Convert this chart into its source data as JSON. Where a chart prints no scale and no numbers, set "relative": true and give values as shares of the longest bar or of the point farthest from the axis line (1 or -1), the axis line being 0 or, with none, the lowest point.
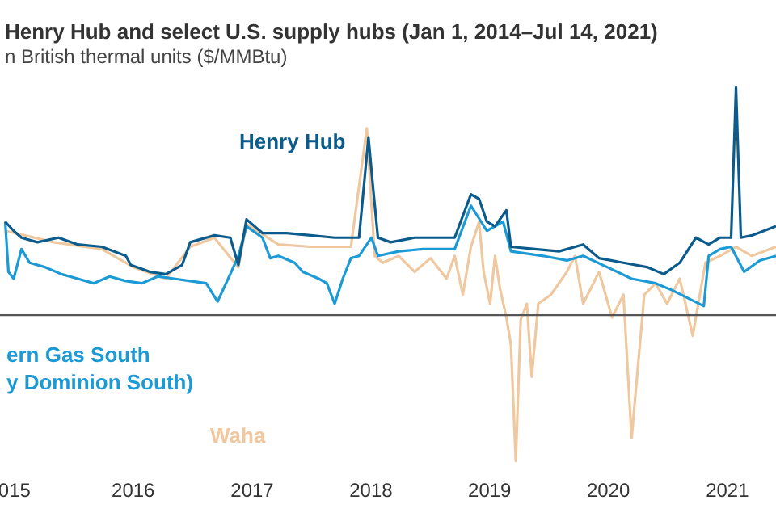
{
  "chart_data": {
    "type": "line",
    "title": "Henry Hub and select U.S. supply hubs (Jan 1, 2014–Jul 14, 2021)",
    "subtitle": "n British thermal units ($/MMBtu)",
    "relative": true,
    "legend": false,
    "line_style": "solid",
    "marker": "none",
    "xlim": [
      "2014-11-20",
      "2021-06-02"
    ],
    "xticks": [
      {
        "value": "2015-01-01",
        "label": "015"
      },
      {
        "value": "2016-01-01",
        "label": "2016"
      },
      {
        "value": "2017-01-01",
        "label": "2017"
      },
      {
        "value": "2018-01-01",
        "label": "2018"
      },
      {
        "value": "2019-01-01",
        "label": "2019"
      },
      {
        "value": "2020-01-01",
        "label": "2020"
      },
      {
        "value": "2021-01-01",
        "label": "2021"
      }
    ],
    "series": [
      {
        "name": "Henry Hub",
        "color": "#0b5c8c",
        "x": [
          "2014-12-06",
          "2015-01-01",
          "2015-01-25",
          "2015-03-15",
          "2015-05-19",
          "2015-07-17",
          "2015-09-29",
          "2015-12-12",
          "2015-12-27",
          "2016-02-24",
          "2016-04-13",
          "2016-06-02",
          "2016-06-27",
          "2016-09-09",
          "2016-10-28",
          "2016-11-22",
          "2016-12-17",
          "2017-02-04",
          "2017-04-19",
          "2017-07-02",
          "2017-09-14",
          "2017-11-28",
          "2017-12-27",
          "2018-01-10",
          "2018-01-25",
          "2018-03-05",
          "2018-05-18",
          "2018-07-31",
          "2018-09-18",
          "2018-11-07",
          "2018-12-02",
          "2018-12-26",
          "2019-01-20",
          "2019-02-24",
          "2019-03-10",
          "2019-05-23",
          "2019-08-05",
          "2019-10-18",
          "2019-12-06",
          "2020-02-19",
          "2020-05-04",
          "2020-06-22",
          "2020-08-10",
          "2020-09-29",
          "2020-11-07",
          "2020-12-12",
          "2021-01-15",
          "2021-01-30",
          "2021-02-14",
          "2021-03-20",
          "2021-06-02"
        ],
        "values": [
          0.41,
          0.37,
          0.34,
          0.32,
          0.34,
          0.31,
          0.3,
          0.26,
          0.22,
          0.19,
          0.18,
          0.22,
          0.32,
          0.35,
          0.34,
          0.22,
          0.42,
          0.36,
          0.36,
          0.35,
          0.34,
          0.34,
          0.78,
          0.56,
          0.34,
          0.32,
          0.34,
          0.34,
          0.34,
          0.53,
          0.51,
          0.41,
          0.39,
          0.46,
          0.3,
          0.29,
          0.28,
          0.31,
          0.25,
          0.23,
          0.21,
          0.18,
          0.23,
          0.34,
          0.31,
          0.34,
          0.34,
          1.0,
          0.34,
          0.35,
          0.39
        ]
      },
      {
        "name": "ern Gas South\ny Dominion South)",
        "color": "#1b9ad6",
        "x": [
          "2014-12-06",
          "2014-12-16",
          "2015-01-01",
          "2015-01-25",
          "2015-02-19",
          "2015-04-09",
          "2015-05-28",
          "2015-07-17",
          "2015-09-04",
          "2015-10-23",
          "2015-12-12",
          "2016-01-30",
          "2016-03-19",
          "2016-05-08",
          "2016-06-27",
          "2016-08-15",
          "2016-09-19",
          "2016-10-28",
          "2016-11-22",
          "2016-12-17",
          "2017-02-04",
          "2017-02-28",
          "2017-03-25",
          "2017-05-14",
          "2017-06-08",
          "2017-07-27",
          "2017-08-21",
          "2017-09-14",
          "2017-10-09",
          "2017-11-03",
          "2017-11-28",
          "2018-01-05",
          "2018-01-25",
          "2018-03-30",
          "2018-06-12",
          "2018-09-18",
          "2018-11-07",
          "2018-12-26",
          "2019-02-14",
          "2019-03-10",
          "2019-06-17",
          "2019-08-29",
          "2019-10-18",
          "2020-01-01",
          "2020-03-15",
          "2020-05-28",
          "2020-07-17",
          "2020-10-23",
          "2020-11-07",
          "2020-12-12",
          "2021-01-15",
          "2021-02-24",
          "2021-04-13",
          "2021-06-02"
        ],
        "values": [
          0.41,
          0.19,
          0.16,
          0.29,
          0.23,
          0.21,
          0.18,
          0.16,
          0.14,
          0.17,
          0.15,
          0.14,
          0.17,
          0.16,
          0.15,
          0.14,
          0.06,
          0.18,
          0.26,
          0.39,
          0.34,
          0.25,
          0.26,
          0.23,
          0.19,
          0.16,
          0.14,
          0.05,
          0.16,
          0.25,
          0.26,
          0.34,
          0.26,
          0.28,
          0.29,
          0.29,
          0.48,
          0.37,
          0.41,
          0.28,
          0.26,
          0.24,
          0.26,
          0.21,
          0.16,
          0.14,
          0.11,
          0.04,
          0.26,
          0.29,
          0.3,
          0.19,
          0.24,
          0.26
        ]
      },
      {
        "name": "Waha",
        "color": "#f0c8a0",
        "x": [
          "2014-12-06",
          "2015-05-04",
          "2015-09-29",
          "2016-01-05",
          "2016-04-13",
          "2016-06-27",
          "2016-09-09",
          "2016-11-22",
          "2016-12-17",
          "2017-03-25",
          "2017-07-02",
          "2017-11-03",
          "2017-12-22",
          "2018-01-15",
          "2018-02-09",
          "2018-03-30",
          "2018-05-18",
          "2018-07-06",
          "2018-08-24",
          "2018-09-18",
          "2018-10-13",
          "2018-11-07",
          "2018-12-02",
          "2018-12-16",
          "2019-01-05",
          "2019-01-20",
          "2019-02-04",
          "2019-02-24",
          "2019-03-10",
          "2019-03-25",
          "2019-04-09",
          "2019-04-28",
          "2019-05-13",
          "2019-06-02",
          "2019-07-11",
          "2019-08-29",
          "2019-09-23",
          "2019-10-18",
          "2019-12-06",
          "2020-01-15",
          "2020-02-19",
          "2020-03-15",
          "2020-04-23",
          "2020-05-28",
          "2020-07-02",
          "2020-08-10",
          "2020-09-19",
          "2020-10-28",
          "2020-12-12",
          "2021-01-30",
          "2021-03-20",
          "2021-06-02"
        ],
        "values": [
          0.37,
          0.32,
          0.29,
          0.21,
          0.16,
          0.3,
          0.34,
          0.21,
          0.4,
          0.31,
          0.3,
          0.3,
          0.82,
          0.26,
          0.23,
          0.26,
          0.19,
          0.25,
          0.16,
          0.26,
          0.09,
          0.3,
          0.41,
          0.19,
          0.05,
          0.26,
          0.12,
          -0.01,
          -0.13,
          -0.64,
          -0.02,
          0.05,
          -0.27,
          0.05,
          0.09,
          0.19,
          0.26,
          0.05,
          0.19,
          -0.01,
          0.09,
          -0.54,
          0.09,
          0.14,
          0.05,
          0.16,
          -0.09,
          0.23,
          0.26,
          0.3,
          0.26,
          0.3
        ]
      }
    ]
  }
}
